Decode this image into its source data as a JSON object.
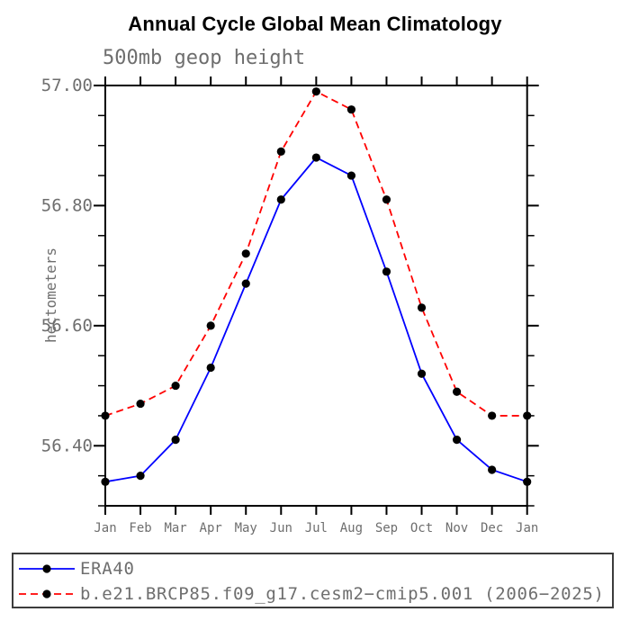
{
  "page": {
    "background": "#ffffff"
  },
  "chart_data": {
    "type": "line",
    "title": "Annual Cycle Global Mean Climatology",
    "subtitle": "500mb geop height",
    "xlabel": "",
    "ylabel": "hectometers",
    "categories": [
      "Jan",
      "Feb",
      "Mar",
      "Apr",
      "May",
      "Jun",
      "Jul",
      "Aug",
      "Sep",
      "Oct",
      "Nov",
      "Dec",
      "Jan"
    ],
    "series": [
      {
        "name": "ERA40",
        "color": "#0000ff",
        "line_style": "solid",
        "marker": "filled-circle",
        "marker_color": "#000000",
        "values": [
          56.34,
          56.35,
          56.41,
          56.53,
          56.67,
          56.81,
          56.88,
          56.85,
          56.69,
          56.52,
          56.41,
          56.36,
          56.34
        ]
      },
      {
        "name": "b.e21.BRCP85.f09_g17.cesm2−cmip5.001 (2006−2025)",
        "color": "#ff0000",
        "line_style": "dashed",
        "marker": "filled-circle",
        "marker_color": "#000000",
        "values": [
          56.45,
          56.47,
          56.5,
          56.6,
          56.72,
          56.89,
          56.99,
          56.96,
          56.81,
          56.63,
          56.49,
          56.45,
          56.45
        ]
      }
    ],
    "ylim": [
      56.3,
      57.0
    ],
    "ytick_major": [
      {
        "value": 57.0,
        "label": "57.00"
      },
      {
        "value": 56.8,
        "label": "56.80"
      },
      {
        "value": 56.6,
        "label": "56.60"
      },
      {
        "value": 56.4,
        "label": "56.40"
      }
    ],
    "ytick_minor_step": 0.05,
    "grid": false,
    "legend_position": "bottom",
    "axis_color": "#000000",
    "label_color": "#6e6e6e",
    "title_color": "#000000"
  }
}
